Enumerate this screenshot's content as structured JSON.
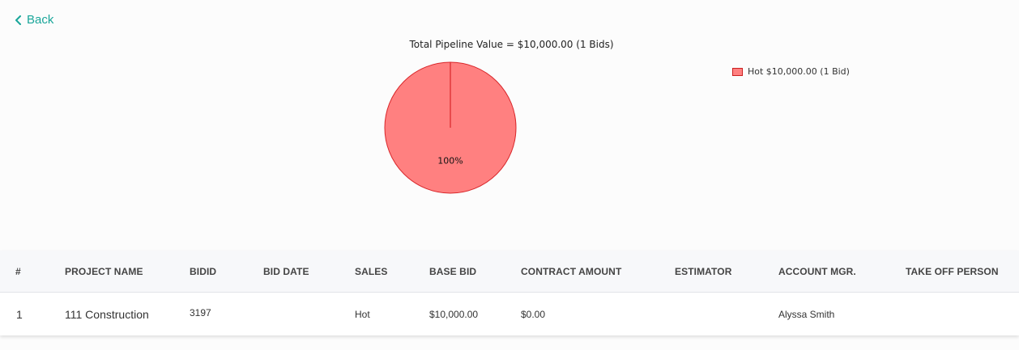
{
  "nav": {
    "back_label": "Back"
  },
  "chart_data": {
    "type": "pie",
    "title": "Total Pipeline Value = $10,000.00 (1 Bids)",
    "slices": [
      {
        "name": "Hot",
        "value": 10000,
        "percent_label": "100%",
        "color": "#ff8080",
        "border_color": "#d9262a"
      }
    ],
    "legend": {
      "placement": "right",
      "entries": [
        "Hot $10,000.00 (1 Bid)"
      ]
    }
  },
  "table": {
    "columns": [
      "#",
      "PROJECT NAME",
      "BIDID",
      "BID DATE",
      "SALES",
      "BASE BID",
      "CONTRACT AMOUNT",
      "ESTIMATOR",
      "ACCOUNT MGR.",
      "TAKE OFF PERSON"
    ],
    "rows": [
      {
        "num": "1",
        "project_name": "111 Construction",
        "bidid": "3197",
        "bid_date": "",
        "sales": "Hot",
        "base_bid": "$10,000.00",
        "contract_amount": "$0.00",
        "estimator": "",
        "account_mgr": "Alyssa Smith",
        "take_off_person": ""
      }
    ]
  },
  "colors": {
    "accent": "#1aa69a",
    "slice_fill": "#ff8080",
    "slice_border": "#d9262a"
  }
}
